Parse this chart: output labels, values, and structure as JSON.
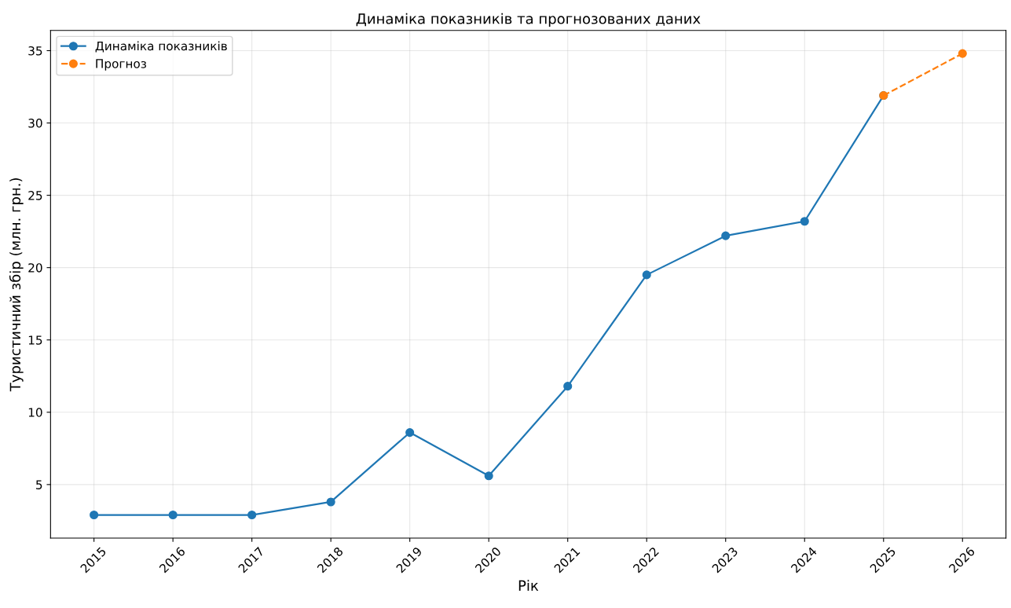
{
  "chart_data": {
    "type": "line",
    "title": "Динаміка показників та прогнозованих даних",
    "xlabel": "Рік",
    "ylabel": "Туристичний збір (млн. грн.)",
    "series": [
      {
        "name": "Динаміка показників",
        "color": "#1f77b4",
        "x": [
          2015,
          2016,
          2017,
          2018,
          2019,
          2020,
          2021,
          2022,
          2023,
          2024,
          2025
        ],
        "values": [
          2.9,
          2.9,
          2.9,
          3.8,
          8.6,
          5.6,
          11.8,
          19.5,
          22.2,
          23.2,
          31.9
        ],
        "line_style": "solid"
      },
      {
        "name": "Прогноз",
        "color": "#ff7f0e",
        "x": [
          2025,
          2026
        ],
        "values": [
          31.9,
          34.8
        ],
        "line_style": "dashed"
      }
    ],
    "xlim": [
      2014.45,
      2026.55
    ],
    "xticks": [
      2015,
      2016,
      2017,
      2018,
      2019,
      2020,
      2021,
      2022,
      2023,
      2024,
      2025,
      2026
    ],
    "ylim": [
      1.3,
      36.4
    ],
    "yticks": [
      5,
      10,
      15,
      20,
      25,
      30,
      35
    ],
    "grid": true,
    "legend": "top left",
    "marker": "circle"
  }
}
